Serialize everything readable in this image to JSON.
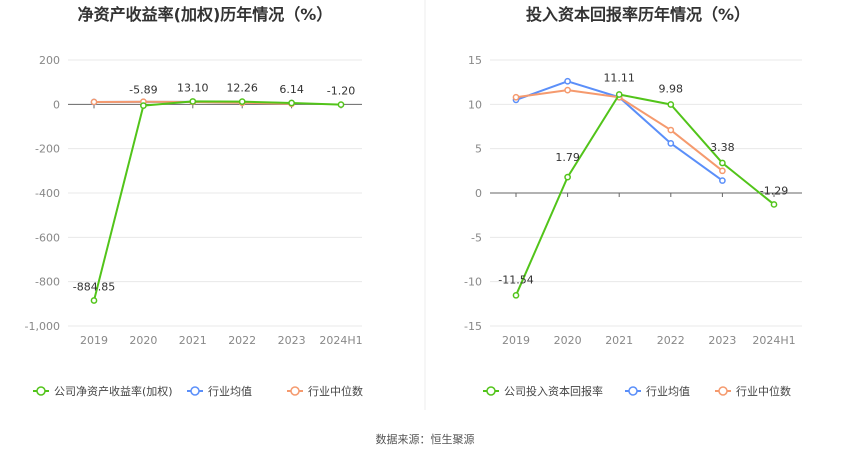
{
  "source": "数据来源：恒生聚源",
  "colors": {
    "company": "#52c41a",
    "avg": "#5b8ff9",
    "median": "#f59a6e"
  },
  "chart_data": [
    {
      "type": "line",
      "title": "净资产收益率(加权)历年情况（%）",
      "categories": [
        "2019",
        "2020",
        "2021",
        "2022",
        "2023",
        "2024H1"
      ],
      "ylim": [
        -1000,
        200
      ],
      "yticks": [
        200,
        0,
        -200,
        -400,
        -600,
        -800,
        -1000
      ],
      "ytick_labels": [
        "200",
        "0",
        "-200",
        "-400",
        "-600",
        "-800",
        "-1,000"
      ],
      "series": [
        {
          "name": "公司净资产收益率(加权)",
          "role": "company",
          "values": [
            -884.85,
            -5.89,
            13.1,
            12.26,
            6.14,
            -1.2
          ],
          "labels": [
            "-884.85",
            "-5.89",
            "13.10",
            "12.26",
            "6.14",
            "-1.20"
          ]
        },
        {
          "name": "行业均值",
          "role": "avg",
          "values": [
            10.5,
            11.0,
            11.0,
            9.0,
            5.5,
            null
          ]
        },
        {
          "name": "行业中位数",
          "role": "median",
          "values": [
            10.8,
            11.5,
            10.8,
            7.2,
            2.5,
            null
          ]
        }
      ]
    },
    {
      "type": "line",
      "title": "投入资本回报率历年情况（%）",
      "categories": [
        "2019",
        "2020",
        "2021",
        "2022",
        "2023",
        "2024H1"
      ],
      "ylim": [
        -15,
        15
      ],
      "yticks": [
        15,
        10,
        5,
        0,
        -5,
        -10,
        -15
      ],
      "ytick_labels": [
        "15",
        "10",
        "5",
        "0",
        "-5",
        "-10",
        "-15"
      ],
      "series": [
        {
          "name": "公司投入资本回报率",
          "role": "company",
          "values": [
            -11.54,
            1.79,
            11.11,
            9.98,
            3.38,
            -1.29
          ],
          "labels": [
            "-11.54",
            "1.79",
            "11.11",
            "9.98",
            "3.38",
            "-1.29"
          ]
        },
        {
          "name": "行业均值",
          "role": "avg",
          "values": [
            10.5,
            12.6,
            10.8,
            5.6,
            1.4,
            null
          ]
        },
        {
          "name": "行业中位数",
          "role": "median",
          "values": [
            10.8,
            11.6,
            10.8,
            7.1,
            2.5,
            null
          ]
        }
      ]
    }
  ]
}
